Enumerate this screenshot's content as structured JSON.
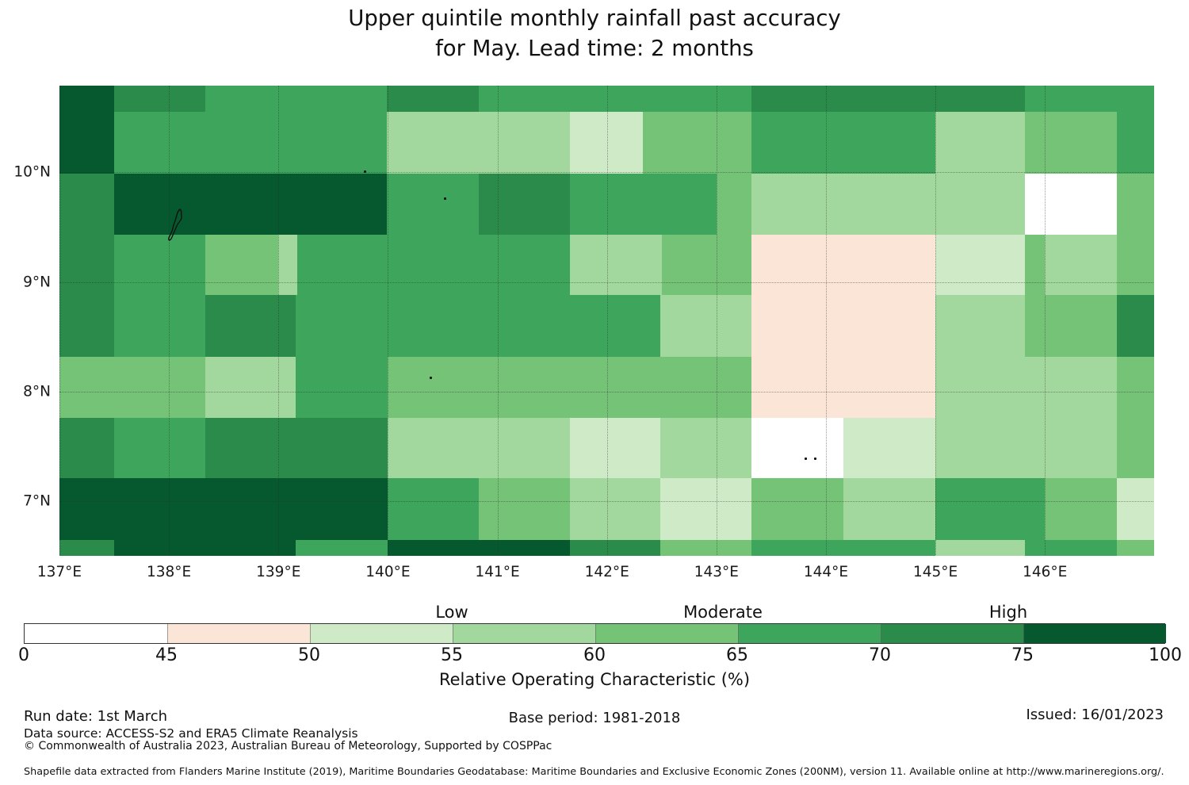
{
  "title": {
    "line1": "Upper quintile monthly rainfall past accuracy",
    "line2": "for May. Lead time: 2 months"
  },
  "meta": {
    "run_date": "Run date: 1st March",
    "base_period": "Base period: 1981-2018",
    "issued": "Issued: 16/01/2023",
    "data_source": "Data source: ACCESS-S2 and ERA5 Climate Reanalysis",
    "copyright": "© Commonwealth of Australia 2023, Australian Bureau of Meteorology, Supported by COSPPac",
    "shapefile_note": "Shapefile data extracted from Flanders Marine Institute (2019), Maritime Boundaries Geodatabase: Maritime Boundaries and Exclusive Economic Zones (200NM), version 11. Available online at http://www.marineregions.org/."
  },
  "chart_data": {
    "type": "heatmap",
    "title": "Upper quintile monthly rainfall past accuracy for May. Lead time: 2 months",
    "metric": "Relative Operating Characteristic (%)",
    "palette": [
      "#ffffff",
      "#fbe5d6",
      "#cfeac6",
      "#a2d89d",
      "#74c377",
      "#3ea65c",
      "#2a8b4b",
      "#06592e"
    ],
    "bins": [
      [
        0,
        45
      ],
      [
        45,
        50
      ],
      [
        50,
        55
      ],
      [
        55,
        60
      ],
      [
        60,
        65
      ],
      [
        65,
        70
      ],
      [
        70,
        75
      ],
      [
        75,
        100
      ]
    ],
    "map": {
      "lon_range": [
        137.0,
        146.99
      ],
      "lat_range": [
        6.51,
        10.79
      ],
      "lon_ticks": [
        {
          "value": 137,
          "label": "137°E"
        },
        {
          "value": 138,
          "label": "138°E"
        },
        {
          "value": 139,
          "label": "139°E"
        },
        {
          "value": 140,
          "label": "140°E"
        },
        {
          "value": 141,
          "label": "141°E"
        },
        {
          "value": 142,
          "label": "142°E"
        },
        {
          "value": 143,
          "label": "143°E"
        },
        {
          "value": 144,
          "label": "144°E"
        },
        {
          "value": 145,
          "label": "145°E"
        },
        {
          "value": 146,
          "label": "146°E"
        }
      ],
      "lat_ticks": [
        {
          "value": 10,
          "label": "10°N"
        },
        {
          "value": 9,
          "label": "9°N"
        },
        {
          "value": 8,
          "label": "8°N"
        },
        {
          "value": 7,
          "label": "7°N"
        }
      ],
      "lat_bounds": [
        10.79,
        10.55,
        9.99,
        9.43,
        8.88,
        8.32,
        7.76,
        7.21,
        6.65,
        6.51
      ],
      "rows": [
        [
          [
            137.0,
            137.5,
            7
          ],
          [
            137.5,
            138.33,
            6
          ],
          [
            138.33,
            139.99,
            5
          ],
          [
            139.99,
            140.83,
            6
          ],
          [
            140.83,
            143.32,
            5
          ],
          [
            143.32,
            145.82,
            6
          ],
          [
            145.82,
            146.99,
            5
          ]
        ],
        [
          [
            137.0,
            137.5,
            7
          ],
          [
            137.5,
            139.99,
            5
          ],
          [
            139.99,
            141.66,
            3
          ],
          [
            141.66,
            142.33,
            2
          ],
          [
            142.33,
            143.32,
            4
          ],
          [
            143.32,
            145.0,
            5
          ],
          [
            145.0,
            145.82,
            3
          ],
          [
            145.82,
            146.66,
            4
          ],
          [
            146.66,
            146.99,
            5
          ]
        ],
        [
          [
            137.0,
            137.5,
            6
          ],
          [
            137.5,
            139.99,
            7
          ],
          [
            139.99,
            140.83,
            5
          ],
          [
            140.83,
            141.66,
            6
          ],
          [
            141.66,
            143.0,
            5
          ],
          [
            143.0,
            143.32,
            4
          ],
          [
            143.32,
            145.82,
            3
          ],
          [
            145.82,
            146.66,
            0
          ],
          [
            146.66,
            146.99,
            4
          ]
        ],
        [
          [
            137.0,
            137.5,
            6
          ],
          [
            137.5,
            138.33,
            5
          ],
          [
            138.33,
            139.0,
            4
          ],
          [
            139.0,
            139.17,
            3
          ],
          [
            139.17,
            141.66,
            5
          ],
          [
            141.66,
            142.5,
            3
          ],
          [
            142.5,
            143.32,
            4
          ],
          [
            143.32,
            145.0,
            1
          ],
          [
            145.0,
            145.82,
            2
          ],
          [
            145.82,
            146.0,
            4
          ],
          [
            146.0,
            146.66,
            3
          ],
          [
            146.66,
            146.99,
            4
          ]
        ],
        [
          [
            137.0,
            137.5,
            6
          ],
          [
            137.5,
            138.33,
            5
          ],
          [
            138.33,
            139.16,
            6
          ],
          [
            139.16,
            142.49,
            5
          ],
          [
            142.49,
            143.32,
            3
          ],
          [
            143.32,
            145.0,
            1
          ],
          [
            145.0,
            145.82,
            3
          ],
          [
            145.82,
            146.66,
            4
          ],
          [
            146.66,
            146.99,
            6
          ]
        ],
        [
          [
            137.0,
            138.33,
            4
          ],
          [
            138.33,
            139.16,
            3
          ],
          [
            139.16,
            140.0,
            5
          ],
          [
            140.0,
            143.32,
            4
          ],
          [
            143.32,
            145.0,
            1
          ],
          [
            145.0,
            146.66,
            3
          ],
          [
            146.66,
            146.99,
            4
          ]
        ],
        [
          [
            137.0,
            137.5,
            6
          ],
          [
            137.5,
            138.33,
            5
          ],
          [
            138.33,
            140.0,
            6
          ],
          [
            140.0,
            141.66,
            3
          ],
          [
            141.66,
            142.49,
            2
          ],
          [
            142.49,
            143.32,
            3
          ],
          [
            143.32,
            144.16,
            0
          ],
          [
            144.16,
            145.0,
            2
          ],
          [
            145.0,
            146.66,
            3
          ],
          [
            146.66,
            146.99,
            4
          ]
        ],
        [
          [
            137.0,
            140.0,
            7
          ],
          [
            140.0,
            140.83,
            5
          ],
          [
            140.83,
            141.66,
            4
          ],
          [
            141.66,
            142.49,
            3
          ],
          [
            142.49,
            143.32,
            2
          ],
          [
            143.32,
            144.16,
            4
          ],
          [
            144.16,
            145.0,
            3
          ],
          [
            145.0,
            146.0,
            5
          ],
          [
            146.0,
            146.66,
            4
          ],
          [
            146.66,
            146.99,
            2
          ]
        ],
        [
          [
            137.0,
            137.5,
            6
          ],
          [
            137.5,
            139.16,
            7
          ],
          [
            139.16,
            140.0,
            5
          ],
          [
            140.0,
            141.66,
            7
          ],
          [
            141.66,
            142.49,
            6
          ],
          [
            142.49,
            143.32,
            4
          ],
          [
            143.32,
            145.0,
            5
          ],
          [
            145.0,
            145.82,
            3
          ],
          [
            145.82,
            146.66,
            5
          ],
          [
            146.66,
            146.99,
            4
          ]
        ]
      ],
      "islands": [
        {
          "name": "Yap",
          "type": "outline",
          "lon": 138.02,
          "lat": 9.66
        },
        {
          "name": "Ulithi",
          "type": "dot",
          "lon": 139.79,
          "lat": 10.01
        },
        {
          "name": "Fais",
          "type": "dot",
          "lon": 140.52,
          "lat": 9.76
        },
        {
          "name": "Sorol",
          "type": "dot",
          "lon": 140.39,
          "lat": 8.13
        },
        {
          "name": "Lamotrek",
          "type": "dot",
          "lon": 143.81,
          "lat": 7.39
        },
        {
          "name": "Elato",
          "type": "dot",
          "lon": 143.9,
          "lat": 7.39
        }
      ]
    },
    "colorbar": {
      "axis_label": "Relative Operating Characteristic (%)",
      "tick_labels": [
        "0",
        "45",
        "50",
        "55",
        "60",
        "65",
        "70",
        "75",
        "100"
      ],
      "region_labels": [
        {
          "label": "Low",
          "at_value": 55
        },
        {
          "label": "Moderate",
          "at_value": 64.5
        },
        {
          "label": "High",
          "at_value": 74.5
        }
      ]
    }
  }
}
